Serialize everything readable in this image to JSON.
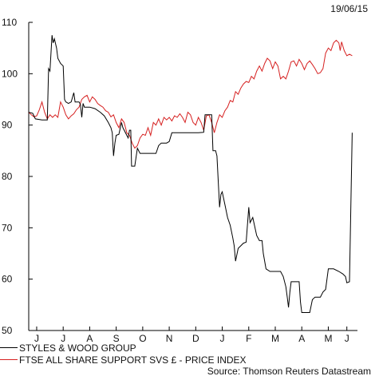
{
  "date_label": "19/06/15",
  "source": "Source: Thomson Reuters Datastream",
  "colors": {
    "series_a": "#000000",
    "series_b": "#d62020",
    "axis": "#000000"
  },
  "chart_data": {
    "type": "line",
    "ylim": [
      50,
      110
    ],
    "xlim": [
      0,
      12.4
    ],
    "yticks": [
      50,
      60,
      70,
      80,
      90,
      100,
      110
    ],
    "xticks": [
      {
        "label": "J",
        "x": 0.3
      },
      {
        "label": "J",
        "x": 1.3
      },
      {
        "label": "A",
        "x": 2.3
      },
      {
        "label": "S",
        "x": 3.3
      },
      {
        "label": "O",
        "x": 4.3
      },
      {
        "label": "N",
        "x": 5.3
      },
      {
        "label": "D",
        "x": 6.3
      },
      {
        "label": "J",
        "x": 7.3
      },
      {
        "label": "F",
        "x": 8.3
      },
      {
        "label": "M",
        "x": 9.3
      },
      {
        "label": "A",
        "x": 10.3
      },
      {
        "label": "M",
        "x": 11.3
      },
      {
        "label": "J",
        "x": 12.0
      }
    ],
    "series": [
      {
        "name": "STYLES & WOOD GROUP",
        "color": "#000000",
        "points": [
          [
            0.0,
            92.5
          ],
          [
            0.15,
            92.3
          ],
          [
            0.25,
            91.2
          ],
          [
            0.5,
            91.0
          ],
          [
            0.6,
            91.0
          ],
          [
            0.7,
            91.0
          ],
          [
            0.75,
            101.0
          ],
          [
            0.8,
            100.5
          ],
          [
            0.88,
            107.5
          ],
          [
            0.92,
            106.0
          ],
          [
            0.97,
            106.8
          ],
          [
            1.05,
            105.0
          ],
          [
            1.1,
            103.0
          ],
          [
            1.2,
            102.0
          ],
          [
            1.3,
            101.5
          ],
          [
            1.35,
            95.0
          ],
          [
            1.4,
            94.5
          ],
          [
            1.5,
            94.2
          ],
          [
            1.6,
            94.5
          ],
          [
            1.7,
            96.3
          ],
          [
            1.75,
            94.5
          ],
          [
            1.85,
            94.5
          ],
          [
            1.9,
            94.5
          ],
          [
            1.95,
            94.0
          ],
          [
            2.0,
            91.5
          ],
          [
            2.05,
            94.2
          ],
          [
            2.1,
            93.5
          ],
          [
            2.3,
            93.5
          ],
          [
            2.5,
            93.2
          ],
          [
            2.7,
            92.5
          ],
          [
            2.85,
            91.8
          ],
          [
            3.0,
            90.5
          ],
          [
            3.1,
            89.5
          ],
          [
            3.15,
            88.5
          ],
          [
            3.2,
            84.0
          ],
          [
            3.25,
            86.5
          ],
          [
            3.3,
            88.0
          ],
          [
            3.4,
            88.2
          ],
          [
            3.5,
            90.5
          ],
          [
            3.55,
            89.5
          ],
          [
            3.7,
            88.0
          ],
          [
            3.75,
            87.5
          ],
          [
            3.8,
            89.0
          ],
          [
            3.85,
            89.0
          ],
          [
            3.88,
            82.0
          ],
          [
            4.0,
            82.0
          ],
          [
            4.1,
            85.5
          ],
          [
            4.2,
            84.5
          ],
          [
            4.4,
            84.5
          ],
          [
            4.6,
            84.5
          ],
          [
            4.8,
            84.5
          ],
          [
            4.9,
            86.0
          ],
          [
            5.0,
            86.5
          ],
          [
            5.2,
            86.5
          ],
          [
            5.3,
            86.8
          ],
          [
            5.4,
            88.5
          ],
          [
            5.6,
            88.5
          ],
          [
            5.8,
            88.5
          ],
          [
            6.0,
            88.5
          ],
          [
            6.2,
            88.5
          ],
          [
            6.4,
            88.5
          ],
          [
            6.6,
            88.6
          ],
          [
            6.65,
            92.0
          ],
          [
            6.8,
            92.0
          ],
          [
            6.9,
            92.0
          ],
          [
            6.95,
            85.0
          ],
          [
            7.05,
            85.0
          ],
          [
            7.1,
            84.0
          ],
          [
            7.2,
            74.0
          ],
          [
            7.25,
            76.5
          ],
          [
            7.3,
            77.0
          ],
          [
            7.4,
            74.5
          ],
          [
            7.5,
            72.0
          ],
          [
            7.6,
            70.5
          ],
          [
            7.7,
            68.0
          ],
          [
            7.75,
            66.5
          ],
          [
            7.8,
            63.5
          ],
          [
            7.9,
            66.0
          ],
          [
            8.0,
            66.5
          ],
          [
            8.1,
            67.0
          ],
          [
            8.2,
            67.2
          ],
          [
            8.3,
            74.0
          ],
          [
            8.35,
            71.0
          ],
          [
            8.45,
            72.0
          ],
          [
            8.6,
            68.5
          ],
          [
            8.7,
            67.5
          ],
          [
            8.8,
            67.5
          ],
          [
            8.85,
            65.0
          ],
          [
            8.95,
            62.0
          ],
          [
            9.1,
            61.5
          ],
          [
            9.3,
            61.5
          ],
          [
            9.5,
            61.5
          ],
          [
            9.6,
            60.5
          ],
          [
            9.7,
            58.5
          ],
          [
            9.75,
            56.5
          ],
          [
            9.8,
            54.5
          ],
          [
            9.85,
            57.5
          ],
          [
            9.9,
            59.5
          ],
          [
            10.0,
            59.5
          ],
          [
            10.2,
            59.5
          ],
          [
            10.25,
            55.5
          ],
          [
            10.3,
            53.5
          ],
          [
            10.6,
            53.5
          ],
          [
            10.7,
            56.0
          ],
          [
            10.8,
            56.5
          ],
          [
            11.0,
            56.5
          ],
          [
            11.1,
            57.5
          ],
          [
            11.2,
            58.0
          ],
          [
            11.3,
            62.0
          ],
          [
            11.5,
            62.0
          ],
          [
            11.7,
            61.5
          ],
          [
            11.85,
            61.0
          ],
          [
            11.95,
            60.5
          ],
          [
            12.0,
            59.3
          ],
          [
            12.1,
            59.5
          ],
          [
            12.2,
            88.5
          ]
        ]
      },
      {
        "name": "FTSE ALL SHARE SUPPORT SVS £ - PRICE INDEX",
        "color": "#d62020",
        "points": [
          [
            0.0,
            92.5
          ],
          [
            0.1,
            92.0
          ],
          [
            0.2,
            91.6
          ],
          [
            0.3,
            91.8
          ],
          [
            0.4,
            93.0
          ],
          [
            0.5,
            94.5
          ],
          [
            0.6,
            92.5
          ],
          [
            0.7,
            91.2
          ],
          [
            0.8,
            92.0
          ],
          [
            0.9,
            91.5
          ],
          [
            1.0,
            92.0
          ],
          [
            1.1,
            91.5
          ],
          [
            1.2,
            94.5
          ],
          [
            1.3,
            93.5
          ],
          [
            1.4,
            92.0
          ],
          [
            1.5,
            91.2
          ],
          [
            1.6,
            91.8
          ],
          [
            1.7,
            92.2
          ],
          [
            1.8,
            93.0
          ],
          [
            1.9,
            93.5
          ],
          [
            2.0,
            95.0
          ],
          [
            2.1,
            95.5
          ],
          [
            2.2,
            95.8
          ],
          [
            2.3,
            94.5
          ],
          [
            2.4,
            95.5
          ],
          [
            2.5,
            95.0
          ],
          [
            2.6,
            94.2
          ],
          [
            2.7,
            93.8
          ],
          [
            2.8,
            93.5
          ],
          [
            2.9,
            92.8
          ],
          [
            3.0,
            92.5
          ],
          [
            3.1,
            91.6
          ],
          [
            3.2,
            92.0
          ],
          [
            3.3,
            90.5
          ],
          [
            3.4,
            89.5
          ],
          [
            3.5,
            91.2
          ],
          [
            3.6,
            90.5
          ],
          [
            3.7,
            88.5
          ],
          [
            3.8,
            88.0
          ],
          [
            3.9,
            86.5
          ],
          [
            4.0,
            85.5
          ],
          [
            4.1,
            86.0
          ],
          [
            4.2,
            87.5
          ],
          [
            4.3,
            88.2
          ],
          [
            4.4,
            88.0
          ],
          [
            4.5,
            89.5
          ],
          [
            4.6,
            88.0
          ],
          [
            4.7,
            90.5
          ],
          [
            4.8,
            90.0
          ],
          [
            4.9,
            91.2
          ],
          [
            5.0,
            90.0
          ],
          [
            5.1,
            91.5
          ],
          [
            5.2,
            91.0
          ],
          [
            5.3,
            91.5
          ],
          [
            5.4,
            90.8
          ],
          [
            5.5,
            91.8
          ],
          [
            5.6,
            91.5
          ],
          [
            5.7,
            92.2
          ],
          [
            5.8,
            91.5
          ],
          [
            5.9,
            90.5
          ],
          [
            6.0,
            92.5
          ],
          [
            6.1,
            92.0
          ],
          [
            6.2,
            90.5
          ],
          [
            6.3,
            90.0
          ],
          [
            6.4,
            91.5
          ],
          [
            6.5,
            90.5
          ],
          [
            6.6,
            89.0
          ],
          [
            6.7,
            91.8
          ],
          [
            6.8,
            92.0
          ],
          [
            6.9,
            90.5
          ],
          [
            7.0,
            88.5
          ],
          [
            7.1,
            90.5
          ],
          [
            7.2,
            92.0
          ],
          [
            7.3,
            91.5
          ],
          [
            7.4,
            92.8
          ],
          [
            7.5,
            93.5
          ],
          [
            7.6,
            94.8
          ],
          [
            7.7,
            94.5
          ],
          [
            7.8,
            96.5
          ],
          [
            7.9,
            96.0
          ],
          [
            8.0,
            97.2
          ],
          [
            8.1,
            98.0
          ],
          [
            8.2,
            98.5
          ],
          [
            8.3,
            98.3
          ],
          [
            8.4,
            99.5
          ],
          [
            8.5,
            99.0
          ],
          [
            8.6,
            100.5
          ],
          [
            8.7,
            101.5
          ],
          [
            8.8,
            100.5
          ],
          [
            8.9,
            102.0
          ],
          [
            9.0,
            103.0
          ],
          [
            9.1,
            102.5
          ],
          [
            9.2,
            101.0
          ],
          [
            9.3,
            102.3
          ],
          [
            9.4,
            101.5
          ],
          [
            9.5,
            99.0
          ],
          [
            9.6,
            99.5
          ],
          [
            9.7,
            99.0
          ],
          [
            9.8,
            100.5
          ],
          [
            9.9,
            102.3
          ],
          [
            10.0,
            102.5
          ],
          [
            10.1,
            101.5
          ],
          [
            10.2,
            102.8
          ],
          [
            10.3,
            102.0
          ],
          [
            10.4,
            100.8
          ],
          [
            10.5,
            102.0
          ],
          [
            10.6,
            102.5
          ],
          [
            10.7,
            101.8
          ],
          [
            10.8,
            101.0
          ],
          [
            10.9,
            100.0
          ],
          [
            11.0,
            100.2
          ],
          [
            11.1,
            101.0
          ],
          [
            11.2,
            104.0
          ],
          [
            11.3,
            105.0
          ],
          [
            11.4,
            104.5
          ],
          [
            11.5,
            106.0
          ],
          [
            11.6,
            106.5
          ],
          [
            11.7,
            106.0
          ],
          [
            11.75,
            104.5
          ],
          [
            11.8,
            106.2
          ],
          [
            11.9,
            104.5
          ],
          [
            12.0,
            103.5
          ],
          [
            12.1,
            103.8
          ],
          [
            12.2,
            103.5
          ]
        ]
      }
    ]
  }
}
